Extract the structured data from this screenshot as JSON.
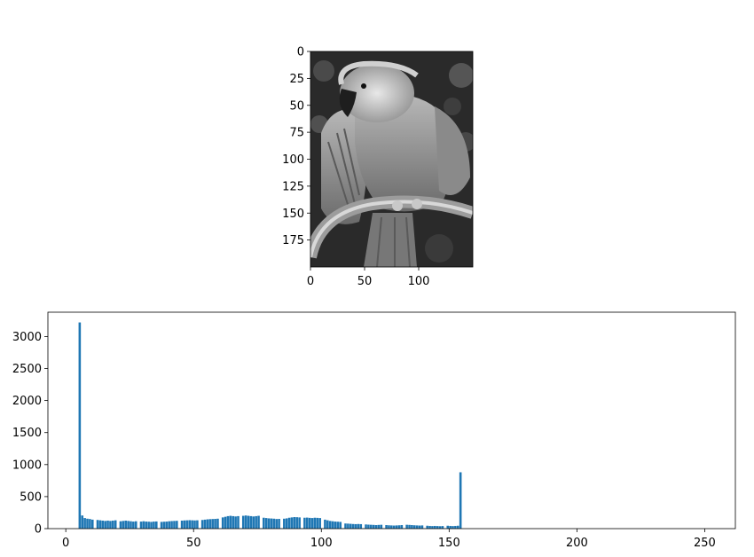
{
  "figure": {
    "image_panel": {
      "xticks": [
        "0",
        "50",
        "100"
      ],
      "xtick_values": [
        0,
        50,
        100
      ],
      "yticks": [
        "0",
        "25",
        "50",
        "75",
        "100",
        "125",
        "150",
        "175"
      ],
      "ytick_values": [
        0,
        25,
        50,
        75,
        100,
        125,
        150,
        175
      ],
      "xlim": [
        0,
        150
      ],
      "ylim": [
        200,
        0
      ],
      "content": "grayscale parrot photograph"
    }
  },
  "chart_data": [
    {
      "type": "histogram",
      "panel": "image",
      "xticks": [
        "0",
        "50",
        "100"
      ],
      "yticks": [
        "0",
        "25",
        "50",
        "75",
        "100",
        "125",
        "150",
        "175"
      ]
    },
    {
      "type": "bar",
      "panel": "histogram",
      "bar_color": "#1f77b4",
      "xlim": [
        -7,
        262
      ],
      "ylim": [
        0,
        3380
      ],
      "xticks": [
        "0",
        "50",
        "100",
        "150",
        "200",
        "250"
      ],
      "xtick_values": [
        0,
        50,
        100,
        150,
        200,
        250
      ],
      "yticks": [
        "0",
        "500",
        "1000",
        "1500",
        "2000",
        "2500",
        "3000"
      ],
      "ytick_values": [
        0,
        500,
        1000,
        1500,
        2000,
        2500,
        3000
      ],
      "bin_start": 5,
      "bin_width": 1,
      "values": [
        3220,
        205,
        165,
        155,
        150,
        140,
        5,
        135,
        130,
        125,
        120,
        125,
        120,
        125,
        130,
        5,
        115,
        120,
        125,
        120,
        115,
        110,
        115,
        5,
        110,
        115,
        110,
        108,
        105,
        110,
        112,
        5,
        105,
        108,
        110,
        115,
        118,
        120,
        122,
        5,
        125,
        128,
        130,
        132,
        130,
        128,
        130,
        5,
        135,
        140,
        145,
        148,
        150,
        152,
        155,
        5,
        175,
        185,
        195,
        200,
        195,
        190,
        195,
        5,
        200,
        205,
        200,
        195,
        190,
        195,
        200,
        5,
        170,
        165,
        160,
        158,
        155,
        150,
        152,
        5,
        155,
        160,
        170,
        175,
        180,
        178,
        175,
        5,
        170,
        172,
        168,
        165,
        170,
        168,
        165,
        5,
        140,
        130,
        120,
        115,
        110,
        108,
        105,
        5,
        80,
        78,
        75,
        72,
        70,
        72,
        70,
        5,
        65,
        62,
        60,
        58,
        55,
        58,
        60,
        5,
        55,
        52,
        50,
        48,
        50,
        52,
        55,
        5,
        60,
        58,
        55,
        52,
        50,
        48,
        50,
        5,
        45,
        42,
        40,
        42,
        40,
        38,
        40,
        5,
        45,
        42,
        40,
        42,
        45,
        880
      ]
    }
  ]
}
